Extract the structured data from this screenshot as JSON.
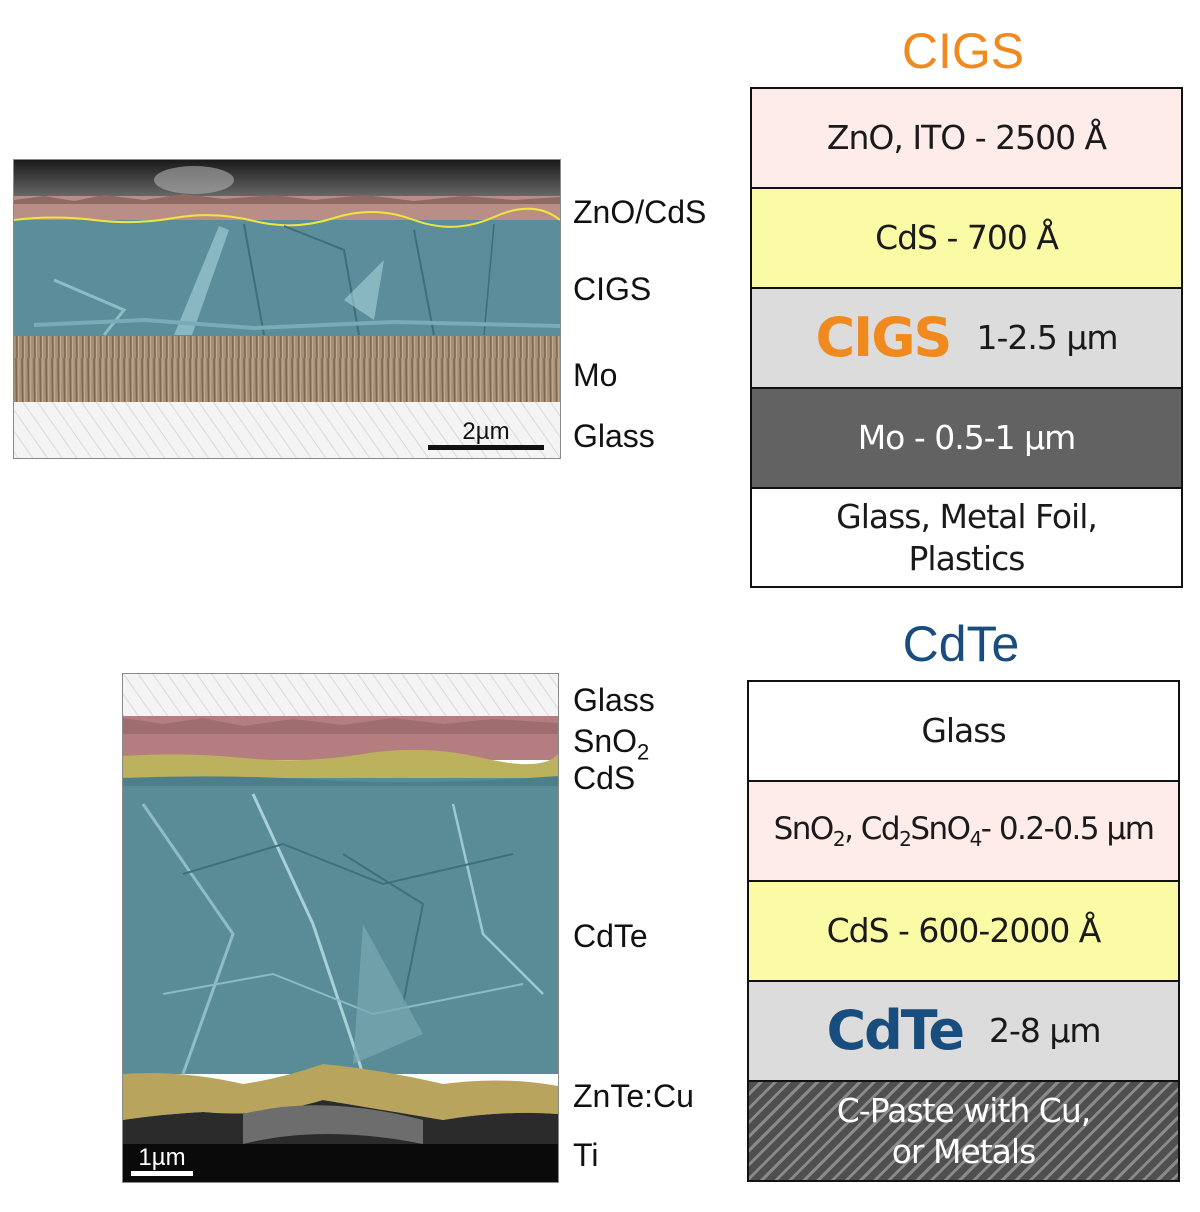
{
  "cigs": {
    "title": "CIGS",
    "title_color": "#f08a1e",
    "sem_labels": [
      "ZnO/CdS",
      "CIGS",
      "Mo",
      "Glass"
    ],
    "scale_bar": "2µm",
    "layers": [
      {
        "text": "ZnO, ITO - 2500 Å",
        "color": "#fdecea"
      },
      {
        "text": "CdS - 700 Å",
        "color": "#fbfba6"
      },
      {
        "highlight": "CIGS",
        "text": "1-2.5 µm",
        "color": "#dcdcdc",
        "highlight_color": "#f08a1e"
      },
      {
        "text": "Mo - 0.5-1 µm",
        "color": "#626262",
        "text_color": "#ffffff"
      },
      {
        "text": "Glass, Metal Foil,",
        "text2": "Plastics",
        "color": "#ffffff"
      }
    ]
  },
  "cdte": {
    "title": "CdTe",
    "title_color": "#184d7e",
    "sem_labels": [
      "Glass",
      "SnO",
      "2",
      "CdS",
      "CdTe",
      "ZnTe:Cu",
      "Ti"
    ],
    "scale_bar": "1µm",
    "layers": [
      {
        "text": "Glass",
        "color": "#ffffff"
      },
      {
        "parts": [
          "SnO",
          "2",
          ", Cd",
          "2",
          "SnO",
          "4",
          "- 0.2-0.5 µm"
        ],
        "color": "#fdecea"
      },
      {
        "text": "CdS - 600-2000 Å",
        "color": "#fbfba6"
      },
      {
        "highlight": "CdTe",
        "text": "2-8 µm",
        "color": "#dcdcdc",
        "highlight_color": "#184d7e"
      },
      {
        "text": "C-Paste with Cu,",
        "text2": "or Metals",
        "color": "#555555",
        "text_color": "#ffffff",
        "hatched": true
      }
    ]
  }
}
